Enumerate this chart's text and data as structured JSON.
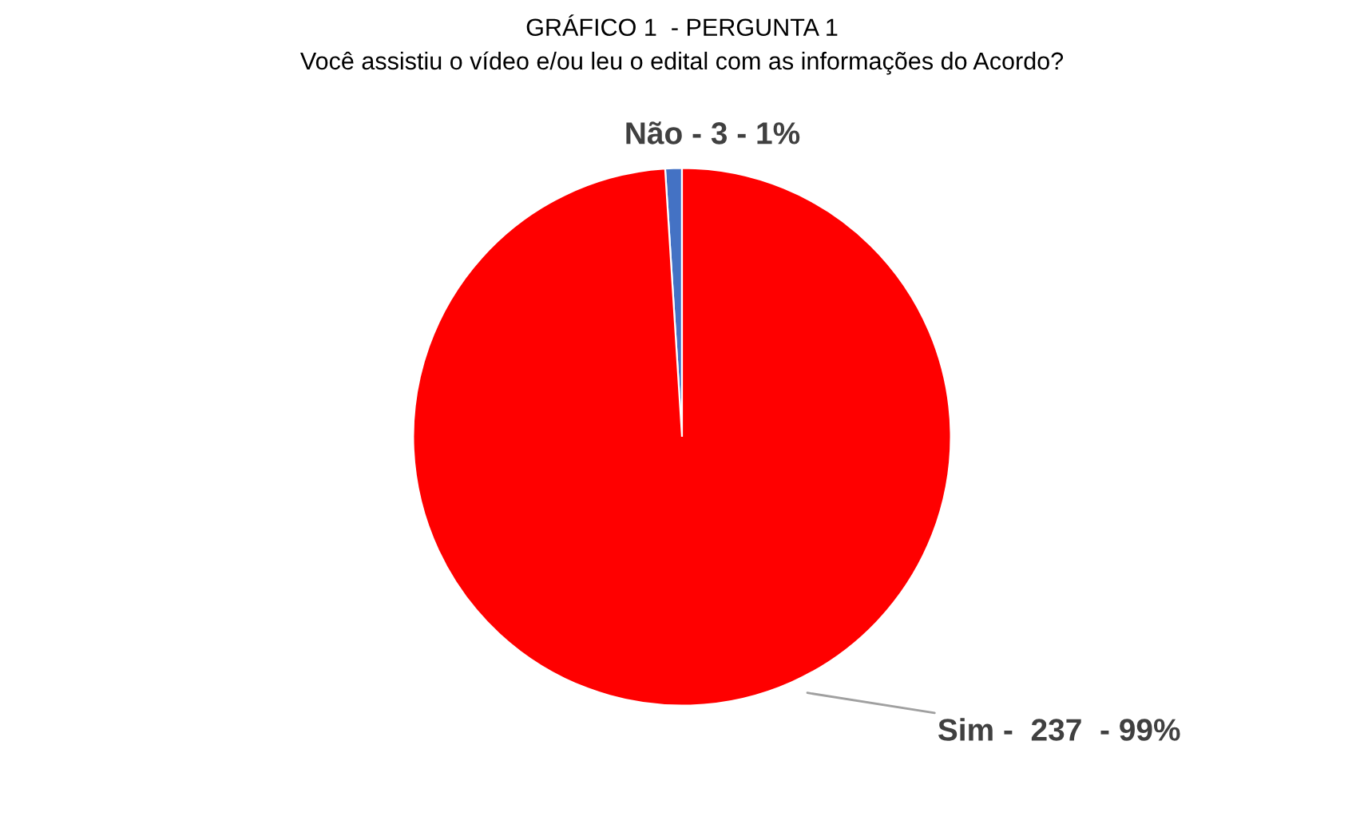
{
  "chart_data": {
    "type": "pie",
    "title": "GRÁFICO 1  - PERGUNTA 1",
    "subtitle": "Você assistiu o vídeo e/ou leu o edital com as informações do Acordo?",
    "categories": [
      "Não - 3 - 1%",
      "Sim -  237  - 99%"
    ],
    "values": [
      1,
      99
    ],
    "colors": [
      "#4472c4",
      "#ff0000"
    ]
  }
}
